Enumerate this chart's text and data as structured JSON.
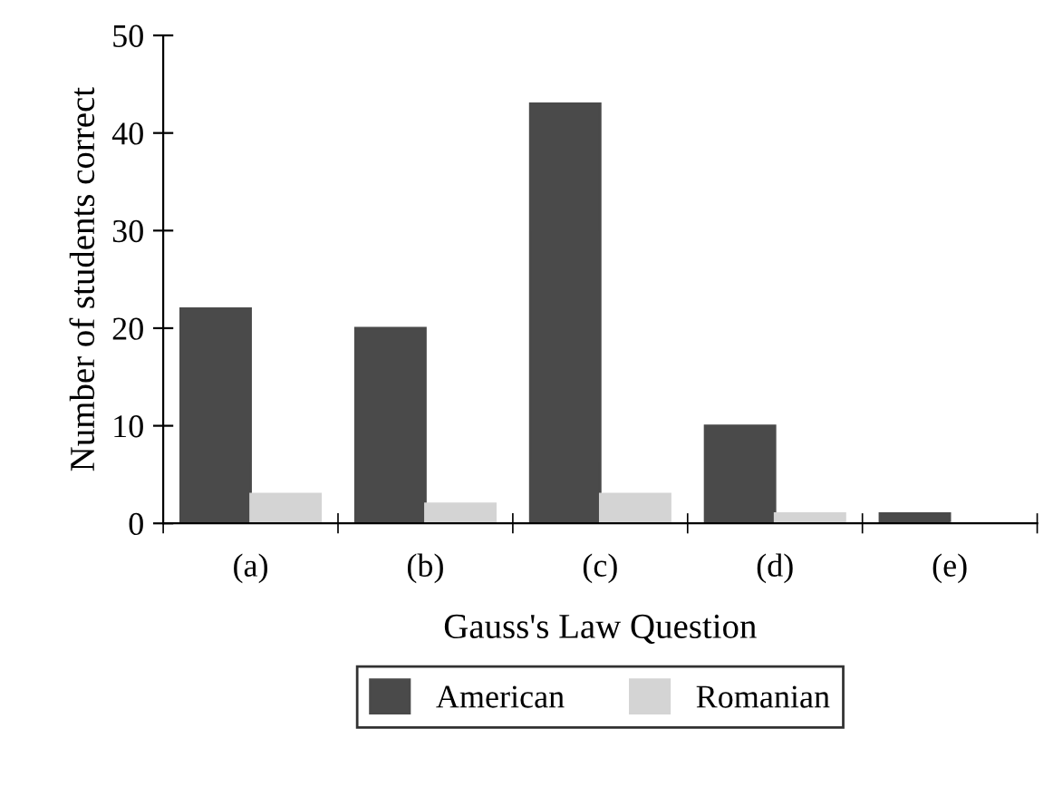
{
  "chart_data": {
    "type": "bar",
    "xlabel": "Gauss's Law Question",
    "ylabel": "Number of students correct",
    "categories": [
      "(a)",
      "(b)",
      "(c)",
      "(d)",
      "(e)"
    ],
    "series": [
      {
        "name": "American",
        "color": "#4a4a4a",
        "values": [
          22,
          20,
          43,
          10,
          1
        ]
      },
      {
        "name": "Romanian",
        "color": "#d4d4d4",
        "values": [
          3,
          2,
          3,
          1,
          0
        ]
      }
    ],
    "ylim": [
      0,
      50
    ],
    "yticks": [
      0,
      10,
      20,
      30,
      40,
      50
    ],
    "grid": false,
    "legend": "bottom"
  }
}
